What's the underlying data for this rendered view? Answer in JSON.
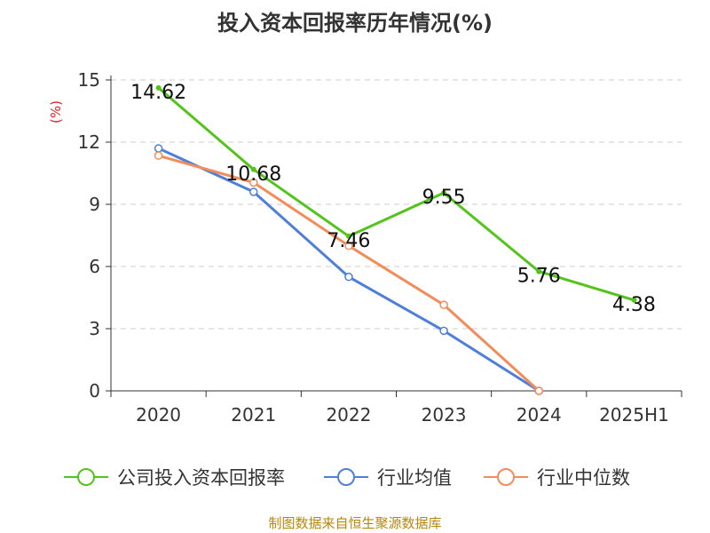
{
  "title": "投入资本回报率历年情况(%)",
  "source": "制图数据来自恒生聚源数据库",
  "colors": {
    "company": "#52c41a",
    "industry_avg": "#4e7fdb",
    "industry_median": "#f28c5a",
    "unit": "#e02020"
  },
  "chart_data": {
    "type": "line",
    "title": "投入资本回报率历年情况(%)",
    "ylabel": "(%)",
    "xlabel": "",
    "categories": [
      "2020",
      "2021",
      "2022",
      "2023",
      "2024",
      "2025H1"
    ],
    "ylim": [
      0,
      15
    ],
    "yticks": [
      0,
      3,
      6,
      9,
      12,
      15
    ],
    "grid": "horizontal dashed",
    "legend_position": "bottom",
    "series": [
      {
        "name": "公司投入资本回报率",
        "color": "#52c41a",
        "values": [
          14.62,
          10.68,
          7.46,
          9.55,
          5.76,
          4.38
        ],
        "labels": [
          "14.62",
          "10.68",
          "7.46",
          "9.55",
          "5.76",
          "4.38"
        ]
      },
      {
        "name": "行业均值",
        "color": "#4e7fdb",
        "values": [
          11.7,
          9.6,
          5.5,
          2.9,
          0.0,
          null
        ]
      },
      {
        "name": "行业中位数",
        "color": "#f28c5a",
        "values": [
          11.35,
          10.05,
          7.0,
          4.15,
          0.0,
          null
        ]
      }
    ]
  }
}
